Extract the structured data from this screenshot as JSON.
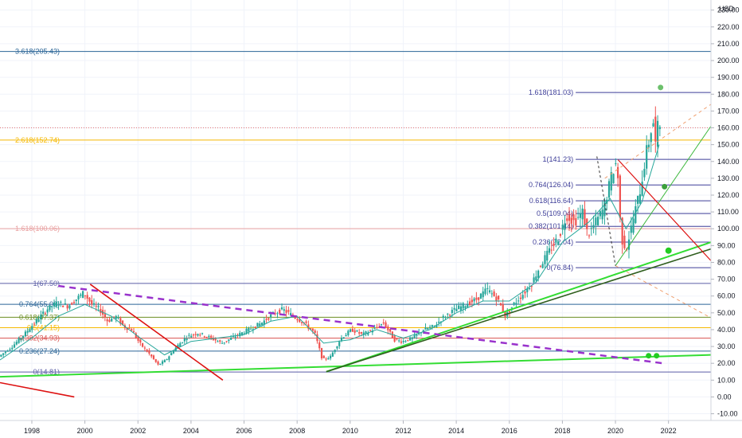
{
  "chart_data": {
    "type": "candlestick",
    "currency": "USD",
    "y_ticks": [
      "230.00",
      "220.00",
      "210.00",
      "200.00",
      "190.00",
      "180.00",
      "170.00",
      "160.00",
      "150.00",
      "140.00",
      "130.00",
      "120.00",
      "110.00",
      "100.00",
      "90.00",
      "80.00",
      "70.00",
      "60.00",
      "50.00",
      "40.00",
      "30.00",
      "20.00",
      "10.00",
      "0.00",
      "-10.00"
    ],
    "y_tick_values": [
      230,
      220,
      210,
      200,
      190,
      180,
      170,
      160,
      150,
      140,
      130,
      120,
      110,
      100,
      90,
      80,
      70,
      60,
      50,
      40,
      30,
      20,
      10,
      0,
      -10
    ],
    "x_ticks": [
      "1998",
      "2000",
      "2002",
      "2004",
      "2006",
      "2008",
      "2010",
      "2012",
      "2014",
      "2016",
      "2018",
      "2020",
      "2022"
    ],
    "x_tick_values": [
      1998,
      2000,
      2002,
      2004,
      2006,
      2008,
      2010,
      2012,
      2014,
      2016,
      2018,
      2020,
      2022
    ],
    "ylim": [
      -14,
      236
    ],
    "xlim": [
      1996.8,
      2023.6
    ],
    "fib_levels": [
      {
        "label": "3.618(205.43)",
        "value": 205.43,
        "x_from": 1996.8,
        "color": "#2a6496"
      },
      {
        "label": "2.618(152.74)",
        "value": 152.74,
        "x_from": 1996.8,
        "color": "#f5b800"
      },
      {
        "label": "1.618(100.06)",
        "value": 100.06,
        "x_from": 1996.8,
        "color": "#e9a1a1"
      },
      {
        "label": "1(67.50)",
        "value": 67.5,
        "x_from": 1996.8,
        "color": "#5b5ea6"
      },
      {
        "label": "0.764(55.06)",
        "value": 55.06,
        "x_from": 1996.8,
        "color": "#2a6496"
      },
      {
        "label": "0.618(47.37)",
        "value": 47.37,
        "x_from": 1996.8,
        "color": "#6b8e23"
      },
      {
        "label": "0.5(41.15)",
        "value": 41.15,
        "x_from": 1996.8,
        "color": "#f5b800"
      },
      {
        "label": "0.382(34.93)",
        "value": 34.93,
        "x_from": 1996.8,
        "color": "#d9534f"
      },
      {
        "label": "0.236(27.24)",
        "value": 27.24,
        "x_from": 1996.8,
        "color": "#2a6496"
      },
      {
        "label": "0(14.81)",
        "value": 14.81,
        "x_from": 1996.8,
        "color": "#5b5ea6"
      },
      {
        "label": "1.618(181.03)",
        "value": 181.03,
        "x_from": 2016.7,
        "color": "#3f3f99"
      },
      {
        "label": "1(141.23)",
        "value": 141.23,
        "x_from": 2016.7,
        "color": "#3f3f99"
      },
      {
        "label": "0.764(126.04)",
        "value": 126.04,
        "x_from": 2016.7,
        "color": "#3f3f99"
      },
      {
        "label": "0.618(116.64)",
        "value": 116.64,
        "x_from": 2016.7,
        "color": "#3f3f99"
      },
      {
        "label": "0.5(109.04)",
        "value": 109.04,
        "x_from": 2016.7,
        "color": "#3f3f99"
      },
      {
        "label": "0.382(101.44)",
        "value": 101.44,
        "x_from": 2016.7,
        "color": "#3f3f99"
      },
      {
        "label": "0.236(92.04)",
        "value": 92.04,
        "x_from": 2016.7,
        "color": "#3f3f99"
      },
      {
        "label": "0(76.84)",
        "value": 76.84,
        "x_from": 2016.7,
        "color": "#3f3f99"
      }
    ],
    "current_price_line": 160,
    "price_path": [
      [
        1996.8,
        24
      ],
      [
        1997.3,
        30
      ],
      [
        1997.8,
        38
      ],
      [
        1998.2,
        45
      ],
      [
        1998.6,
        52
      ],
      [
        1999.0,
        56
      ],
      [
        1999.4,
        54
      ],
      [
        1999.7,
        58
      ],
      [
        2000.0,
        62
      ],
      [
        2000.3,
        55
      ],
      [
        2000.6,
        52
      ],
      [
        2000.9,
        45
      ],
      [
        2001.2,
        48
      ],
      [
        2001.5,
        42
      ],
      [
        2001.8,
        40
      ],
      [
        2002.1,
        32
      ],
      [
        2002.5,
        25
      ],
      [
        2002.8,
        19
      ],
      [
        2003.1,
        22
      ],
      [
        2003.5,
        30
      ],
      [
        2003.9,
        36
      ],
      [
        2004.3,
        38
      ],
      [
        2004.8,
        35
      ],
      [
        2005.2,
        32
      ],
      [
        2005.7,
        36
      ],
      [
        2006.2,
        40
      ],
      [
        2006.7,
        44
      ],
      [
        2007.1,
        49
      ],
      [
        2007.5,
        52
      ],
      [
        2007.9,
        48
      ],
      [
        2008.3,
        44
      ],
      [
        2008.7,
        38
      ],
      [
        2009.0,
        22
      ],
      [
        2009.3,
        24
      ],
      [
        2009.7,
        35
      ],
      [
        2010.1,
        40
      ],
      [
        2010.5,
        37
      ],
      [
        2010.9,
        40
      ],
      [
        2011.3,
        44
      ],
      [
        2011.7,
        34
      ],
      [
        2012.0,
        33
      ],
      [
        2012.4,
        35
      ],
      [
        2012.8,
        40
      ],
      [
        2013.2,
        42
      ],
      [
        2013.6,
        48
      ],
      [
        2014.0,
        52
      ],
      [
        2014.4,
        55
      ],
      [
        2014.8,
        58
      ],
      [
        2015.2,
        64
      ],
      [
        2015.6,
        58
      ],
      [
        2015.9,
        48
      ],
      [
        2016.2,
        55
      ],
      [
        2016.6,
        62
      ],
      [
        2016.9,
        68
      ],
      [
        2017.2,
        78
      ],
      [
        2017.6,
        88
      ],
      [
        2017.9,
        95
      ],
      [
        2018.2,
        108
      ],
      [
        2018.5,
        104
      ],
      [
        2018.8,
        110
      ],
      [
        2019.0,
        96
      ],
      [
        2019.3,
        104
      ],
      [
        2019.6,
        112
      ],
      [
        2019.9,
        132
      ],
      [
        2020.1,
        141
      ],
      [
        2020.25,
        95
      ],
      [
        2020.45,
        88
      ],
      [
        2020.7,
        105
      ],
      [
        2021.0,
        125
      ],
      [
        2021.2,
        145
      ],
      [
        2021.35,
        155
      ],
      [
        2021.45,
        166
      ],
      [
        2021.55,
        150
      ],
      [
        2021.65,
        162
      ]
    ],
    "ma_path": [
      [
        1996.8,
        22
      ],
      [
        1998.0,
        35
      ],
      [
        1999.0,
        48
      ],
      [
        2000.0,
        55
      ],
      [
        2001.0,
        48
      ],
      [
        2002.0,
        36
      ],
      [
        2003.0,
        25
      ],
      [
        2004.0,
        33
      ],
      [
        2005.0,
        35
      ],
      [
        2006.0,
        37
      ],
      [
        2007.0,
        45
      ],
      [
        2008.0,
        48
      ],
      [
        2009.0,
        32
      ],
      [
        2010.0,
        34
      ],
      [
        2011.0,
        40
      ],
      [
        2012.0,
        35
      ],
      [
        2013.0,
        40
      ],
      [
        2014.0,
        50
      ],
      [
        2015.0,
        57
      ],
      [
        2016.0,
        57
      ],
      [
        2017.0,
        68
      ],
      [
        2018.0,
        92
      ],
      [
        2019.0,
        104
      ],
      [
        2019.8,
        118
      ],
      [
        2020.4,
        100
      ],
      [
        2021.0,
        116
      ],
      [
        2021.65,
        150
      ]
    ],
    "trendlines": [
      {
        "points": [
          [
            1996.8,
            12
          ],
          [
            2023.6,
            25
          ]
        ],
        "color": "#33dd33",
        "width": 2,
        "dash": ""
      },
      {
        "points": [
          [
            2009.1,
            15
          ],
          [
            2023.6,
            92
          ]
        ],
        "color": "#33dd33",
        "width": 2,
        "dash": ""
      },
      {
        "points": [
          [
            2009.1,
            15
          ],
          [
            2023.6,
            88
          ]
        ],
        "color": "#2f5e1e",
        "width": 1.6,
        "dash": ""
      },
      {
        "points": [
          [
            1999.0,
            66
          ],
          [
            2021.8,
            20
          ]
        ],
        "color": "#9932cc",
        "width": 2.5,
        "dash": "8,6"
      },
      {
        "points": [
          [
            2000.2,
            67
          ],
          [
            2005.2,
            10
          ]
        ],
        "color": "#dd1111",
        "width": 1.6,
        "dash": ""
      },
      {
        "points": [
          [
            1996.8,
            8.5
          ],
          [
            1999.6,
            0
          ]
        ],
        "color": "#dd1111",
        "width": 1.6,
        "dash": ""
      },
      {
        "points": [
          [
            2020.1,
            141
          ],
          [
            2023.6,
            81
          ]
        ],
        "color": "#dd1111",
        "width": 1.2,
        "dash": ""
      },
      {
        "points": [
          [
            2020.0,
            78
          ],
          [
            2023.6,
            161
          ]
        ],
        "color": "#3db83d",
        "width": 1,
        "dash": ""
      },
      {
        "points": [
          [
            2019.6,
            130
          ],
          [
            2023.6,
            174
          ]
        ],
        "color": "#f0a070",
        "width": 1,
        "dash": "4,4"
      },
      {
        "points": [
          [
            2020.0,
            78
          ],
          [
            2023.6,
            47
          ]
        ],
        "color": "#f0a070",
        "width": 1,
        "dash": "4,4"
      },
      {
        "points": [
          [
            2019.3,
            143
          ],
          [
            2020.0,
            78
          ]
        ],
        "color": "#333333",
        "width": 1,
        "dash": "3,3"
      }
    ],
    "markers": [
      {
        "x": 2021.7,
        "y": 184,
        "color": "#6cc06c",
        "r": 3.5
      },
      {
        "x": 2021.85,
        "y": 125,
        "color": "#3aa03a",
        "r": 3.5
      },
      {
        "x": 2022.0,
        "y": 87,
        "color": "#22cc22",
        "r": 4
      },
      {
        "x": 2021.25,
        "y": 24.5,
        "color": "#22cc22",
        "r": 3.5
      },
      {
        "x": 2021.55,
        "y": 24.5,
        "color": "#22cc22",
        "r": 3.5
      }
    ]
  }
}
